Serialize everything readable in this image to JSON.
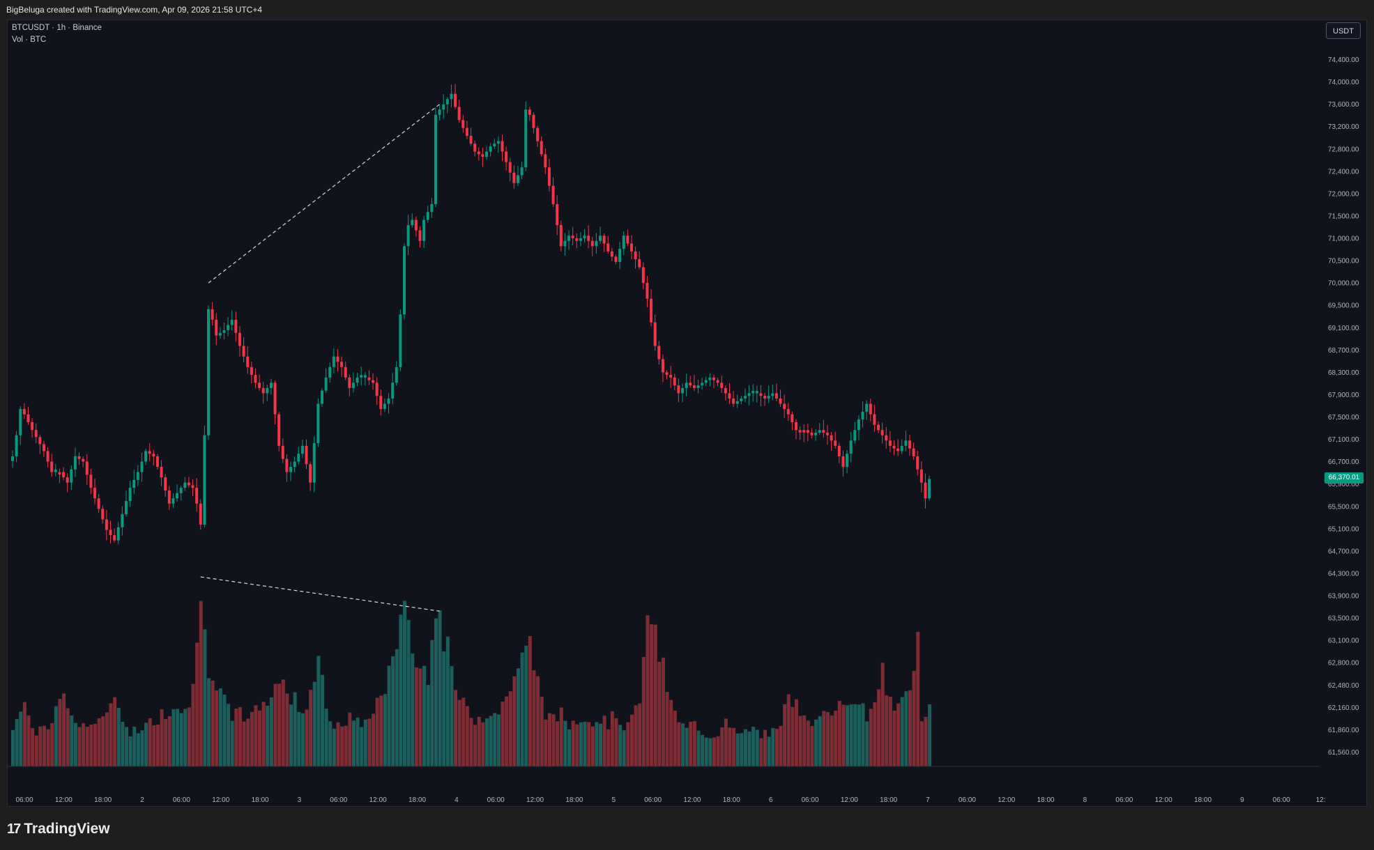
{
  "header": {
    "attribution": "BigBeluga created with TradingView.com, Apr 09, 2026 21:58 UTC+4",
    "symbol_line": "BTCUSDT · 1h · Binance",
    "volume_line": "Vol · BTC",
    "currency": "USDT",
    "last_price": "66,370.01"
  },
  "footer": {
    "brand_mark": "17",
    "brand": "TradingView"
  },
  "colors": {
    "up": "#089981",
    "down": "#f23645",
    "vol_up": "#1b5e5c",
    "vol_down": "#7d2d33",
    "background": "#11131c",
    "last_price_badge": "#089981"
  },
  "chart_data": {
    "type": "candlestick",
    "symbol": "BTCUSDT",
    "interval": "1h",
    "exchange": "Binance",
    "y_ticks": [
      "74,400.00",
      "74,000.00",
      "73,600.00",
      "73,200.00",
      "72,800.00",
      "72,400.00",
      "72,000.00",
      "71,500.00",
      "71,000.00",
      "70,500.00",
      "70,000.00",
      "69,500.00",
      "69,100.00",
      "68,700.00",
      "68,300.00",
      "67,900.00",
      "67,500.00",
      "67,100.00",
      "66,700.00",
      "65,900.00",
      "65,500.00",
      "65,100.00",
      "64,700.00",
      "64,300.00",
      "63,900.00",
      "63,500.00",
      "63,100.00",
      "62,800.00",
      "62,480.00",
      "62,160.00",
      "61,860.00",
      "61,560.00"
    ],
    "x_ticks": [
      "06:00",
      "12:00",
      "18:00",
      "2",
      "06:00",
      "12:00",
      "18:00",
      "3",
      "06:00",
      "12:00",
      "18:00",
      "4",
      "06:00",
      "12:00",
      "18:00",
      "5",
      "06:00",
      "12:00",
      "18:00",
      "6",
      "06:00",
      "12:00",
      "18:00",
      "7",
      "06:00",
      "12:00",
      "18:00",
      "8",
      "06:00",
      "12:00",
      "18:00",
      "9",
      "06:00",
      "12:"
    ],
    "price_keypoints": [
      [
        0,
        66800
      ],
      [
        1,
        67200
      ],
      [
        2,
        67700
      ],
      [
        3,
        67600
      ],
      [
        5,
        67300
      ],
      [
        8,
        66900
      ],
      [
        10,
        66500
      ],
      [
        12,
        66500
      ],
      [
        14,
        66300
      ],
      [
        16,
        66800
      ],
      [
        18,
        66700
      ],
      [
        20,
        66200
      ],
      [
        22,
        65800
      ],
      [
        24,
        65400
      ],
      [
        26,
        65200
      ],
      [
        28,
        65700
      ],
      [
        30,
        66200
      ],
      [
        32,
        66500
      ],
      [
        34,
        66900
      ],
      [
        36,
        66800
      ],
      [
        38,
        66400
      ],
      [
        40,
        65900
      ],
      [
        42,
        66100
      ],
      [
        44,
        66300
      ],
      [
        46,
        66200
      ],
      [
        47,
        65900
      ],
      [
        48,
        65500
      ],
      [
        49,
        67200
      ],
      [
        50,
        69600
      ],
      [
        51,
        69400
      ],
      [
        52,
        69100
      ],
      [
        54,
        69200
      ],
      [
        56,
        69400
      ],
      [
        58,
        68900
      ],
      [
        60,
        68500
      ],
      [
        62,
        68200
      ],
      [
        64,
        68000
      ],
      [
        66,
        68200
      ],
      [
        68,
        67000
      ],
      [
        70,
        66500
      ],
      [
        72,
        66700
      ],
      [
        74,
        67000
      ],
      [
        76,
        66300
      ],
      [
        78,
        67800
      ],
      [
        80,
        68300
      ],
      [
        82,
        68700
      ],
      [
        84,
        68500
      ],
      [
        86,
        68100
      ],
      [
        88,
        68300
      ],
      [
        90,
        68300
      ],
      [
        92,
        68200
      ],
      [
        94,
        67700
      ],
      [
        96,
        67900
      ],
      [
        98,
        68500
      ],
      [
        99,
        69500
      ],
      [
        100,
        70800
      ],
      [
        101,
        71200
      ],
      [
        102,
        71300
      ],
      [
        104,
        70900
      ],
      [
        105,
        71300
      ],
      [
        107,
        71600
      ],
      [
        108,
        73300
      ],
      [
        109,
        73400
      ],
      [
        111,
        73600
      ],
      [
        112,
        73700
      ],
      [
        114,
        73200
      ],
      [
        116,
        72900
      ],
      [
        118,
        72600
      ],
      [
        120,
        72500
      ],
      [
        122,
        72700
      ],
      [
        124,
        72800
      ],
      [
        126,
        72400
      ],
      [
        128,
        72000
      ],
      [
        130,
        72300
      ],
      [
        131,
        73400
      ],
      [
        132,
        73300
      ],
      [
        134,
        72800
      ],
      [
        136,
        72300
      ],
      [
        138,
        71600
      ],
      [
        140,
        70800
      ],
      [
        142,
        71000
      ],
      [
        144,
        70900
      ],
      [
        146,
        71000
      ],
      [
        148,
        70800
      ],
      [
        150,
        71000
      ],
      [
        152,
        70700
      ],
      [
        154,
        70500
      ],
      [
        156,
        71000
      ],
      [
        158,
        70700
      ],
      [
        160,
        70400
      ],
      [
        162,
        69800
      ],
      [
        164,
        68900
      ],
      [
        166,
        68400
      ],
      [
        168,
        68300
      ],
      [
        170,
        68000
      ],
      [
        172,
        68200
      ],
      [
        174,
        68100
      ],
      [
        176,
        68200
      ],
      [
        178,
        68300
      ],
      [
        180,
        68200
      ],
      [
        182,
        68000
      ],
      [
        184,
        67800
      ],
      [
        186,
        67900
      ],
      [
        188,
        68000
      ],
      [
        190,
        68000
      ],
      [
        192,
        67900
      ],
      [
        194,
        68000
      ],
      [
        196,
        67800
      ],
      [
        198,
        67600
      ],
      [
        200,
        67300
      ],
      [
        202,
        67300
      ],
      [
        204,
        67200
      ],
      [
        206,
        67300
      ],
      [
        208,
        67200
      ],
      [
        210,
        67000
      ],
      [
        212,
        66600
      ],
      [
        214,
        67100
      ],
      [
        216,
        67500
      ],
      [
        218,
        67800
      ],
      [
        220,
        67400
      ],
      [
        222,
        67200
      ],
      [
        224,
        67000
      ],
      [
        226,
        66900
      ],
      [
        228,
        67100
      ],
      [
        230,
        66800
      ],
      [
        232,
        66300
      ],
      [
        233,
        66000
      ],
      [
        234,
        66370
      ]
    ],
    "volume_keypoints": [
      [
        0,
        180
      ],
      [
        3,
        260
      ],
      [
        6,
        150
      ],
      [
        9,
        160
      ],
      [
        12,
        310
      ],
      [
        15,
        230
      ],
      [
        18,
        180
      ],
      [
        21,
        190
      ],
      [
        24,
        210
      ],
      [
        26,
        320
      ],
      [
        28,
        210
      ],
      [
        30,
        150
      ],
      [
        33,
        170
      ],
      [
        36,
        200
      ],
      [
        39,
        240
      ],
      [
        42,
        280
      ],
      [
        45,
        240
      ],
      [
        47,
        520
      ],
      [
        48,
        830
      ],
      [
        49,
        690
      ],
      [
        50,
        450
      ],
      [
        52,
        330
      ],
      [
        54,
        280
      ],
      [
        56,
        200
      ],
      [
        58,
        250
      ],
      [
        60,
        200
      ],
      [
        62,
        240
      ],
      [
        64,
        270
      ],
      [
        66,
        320
      ],
      [
        68,
        400
      ],
      [
        70,
        310
      ],
      [
        72,
        290
      ],
      [
        74,
        240
      ],
      [
        76,
        340
      ],
      [
        78,
        500
      ],
      [
        80,
        250
      ],
      [
        82,
        180
      ],
      [
        84,
        160
      ],
      [
        86,
        230
      ],
      [
        88,
        190
      ],
      [
        90,
        180
      ],
      [
        92,
        260
      ],
      [
        94,
        300
      ],
      [
        96,
        410
      ],
      [
        98,
        460
      ],
      [
        99,
        720
      ],
      [
        100,
        760
      ],
      [
        101,
        620
      ],
      [
        102,
        500
      ],
      [
        104,
        420
      ],
      [
        106,
        420
      ],
      [
        107,
        650
      ],
      [
        108,
        740
      ],
      [
        110,
        560
      ],
      [
        112,
        430
      ],
      [
        114,
        280
      ],
      [
        116,
        250
      ],
      [
        118,
        210
      ],
      [
        120,
        220
      ],
      [
        122,
        250
      ],
      [
        124,
        230
      ],
      [
        126,
        310
      ],
      [
        128,
        400
      ],
      [
        130,
        460
      ],
      [
        132,
        530
      ],
      [
        134,
        370
      ],
      [
        136,
        240
      ],
      [
        138,
        200
      ],
      [
        140,
        230
      ],
      [
        142,
        180
      ],
      [
        144,
        210
      ],
      [
        146,
        230
      ],
      [
        148,
        190
      ],
      [
        150,
        210
      ],
      [
        152,
        190
      ],
      [
        154,
        230
      ],
      [
        156,
        180
      ],
      [
        158,
        200
      ],
      [
        160,
        310
      ],
      [
        162,
        580
      ],
      [
        163,
        690
      ],
      [
        164,
        570
      ],
      [
        166,
        420
      ],
      [
        168,
        270
      ],
      [
        170,
        190
      ],
      [
        172,
        160
      ],
      [
        174,
        200
      ],
      [
        176,
        150
      ],
      [
        178,
        130
      ],
      [
        180,
        150
      ],
      [
        182,
        190
      ],
      [
        184,
        150
      ],
      [
        186,
        140
      ],
      [
        188,
        160
      ],
      [
        190,
        150
      ],
      [
        192,
        140
      ],
      [
        194,
        160
      ],
      [
        196,
        200
      ],
      [
        198,
        300
      ],
      [
        200,
        280
      ],
      [
        202,
        220
      ],
      [
        204,
        200
      ],
      [
        206,
        240
      ],
      [
        208,
        260
      ],
      [
        210,
        250
      ],
      [
        212,
        300
      ],
      [
        214,
        250
      ],
      [
        216,
        260
      ],
      [
        218,
        230
      ],
      [
        220,
        300
      ],
      [
        222,
        420
      ],
      [
        224,
        280
      ],
      [
        226,
        260
      ],
      [
        228,
        300
      ],
      [
        230,
        420
      ],
      [
        231,
        520
      ],
      [
        232,
        230
      ],
      [
        234,
        250
      ]
    ],
    "trend_lines": [
      {
        "pane": "price",
        "from": [
          50,
          70100
        ],
        "to": [
          109,
          73500
        ],
        "style": "dashed"
      },
      {
        "pane": "volume",
        "from": [
          48,
          830
        ],
        "to": [
          109,
          680
        ],
        "style": "dashed"
      }
    ],
    "last_price": 66370.01,
    "grid": false
  }
}
